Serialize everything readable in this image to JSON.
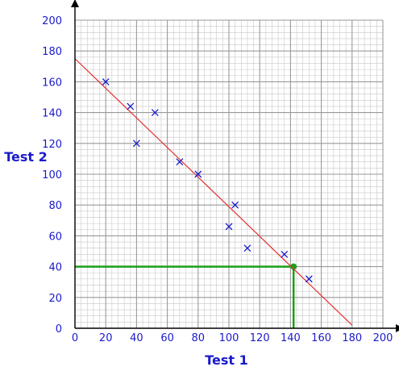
{
  "chart_data": {
    "type": "scatter",
    "xlabel": "Test 1",
    "ylabel": "Test 2",
    "xlim": [
      0,
      200
    ],
    "ylim": [
      0,
      200
    ],
    "xticks": [
      0,
      20,
      40,
      60,
      80,
      100,
      120,
      140,
      160,
      180,
      200
    ],
    "yticks": [
      0,
      20,
      40,
      60,
      80,
      100,
      120,
      140,
      160,
      180,
      200
    ],
    "grid": true,
    "points": [
      {
        "x": 20,
        "y": 160
      },
      {
        "x": 36,
        "y": 144
      },
      {
        "x": 40,
        "y": 120
      },
      {
        "x": 52,
        "y": 140
      },
      {
        "x": 68,
        "y": 108
      },
      {
        "x": 80,
        "y": 100
      },
      {
        "x": 100,
        "y": 66
      },
      {
        "x": 104,
        "y": 80
      },
      {
        "x": 112,
        "y": 52
      },
      {
        "x": 136,
        "y": 48
      },
      {
        "x": 152,
        "y": 32
      }
    ],
    "best_fit_line": {
      "x1": 0,
      "y1": 175,
      "x2": 180,
      "y2": 2
    },
    "estimate": {
      "x": 142,
      "y": 40
    },
    "colors": {
      "grid_minor": "#c8c8c8",
      "grid_major": "#9a9a9a",
      "axis": "#000000",
      "points": "#1a1acc",
      "line": "#e53030",
      "estimate": "#1aa01a",
      "labels": "#1a1acc"
    }
  }
}
